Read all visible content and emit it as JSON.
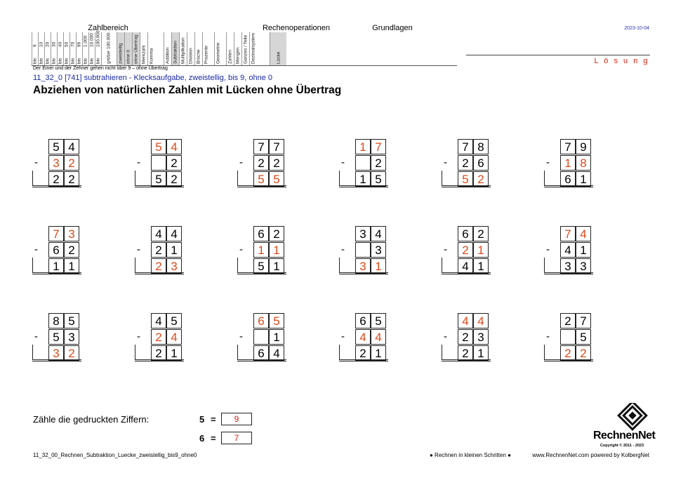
{
  "header": {
    "groups": {
      "zahlbereich": "Zahlbereich",
      "rechenoperationen": "Rechenoperationen",
      "grundlagen": "Grundlagen"
    },
    "columns": [
      {
        "top": "9",
        "label": "bis"
      },
      {
        "top": "10",
        "label": "bis"
      },
      {
        "top": "20",
        "label": "bis"
      },
      {
        "top": "30",
        "label": "bis"
      },
      {
        "top": "40",
        "label": "bis"
      },
      {
        "top": "50",
        "label": "bis"
      },
      {
        "top": "70",
        "label": "bis"
      },
      {
        "top": "99",
        "label": "bis"
      },
      {
        "top": "1.000",
        "label": "bis"
      },
      {
        "top": "10.000",
        "label": "bis"
      },
      {
        "top": "100.000",
        "label": "bis"
      },
      {
        "top": "",
        "label": "größer 100.000"
      },
      {
        "top": "",
        "label": "zweistellig",
        "shaded": true
      },
      {
        "top": "",
        "label": "ohne 0",
        "shaded": true
      },
      {
        "top": "",
        "label": "ohne Übertrag",
        "shaded": true
      },
      {
        "top": "",
        "label": "Merkzahl"
      },
      {
        "top": "",
        "label": "Komma"
      },
      {
        "top": "",
        "label": "Addition"
      },
      {
        "top": "",
        "label": "Subtraktion",
        "shaded": true
      },
      {
        "top": "",
        "label": "Multiplikation"
      },
      {
        "top": "",
        "label": "Division"
      },
      {
        "top": "",
        "label": "Brüche"
      },
      {
        "top": "",
        "label": "Prozente"
      },
      {
        "top": "",
        "label": "Geometrie"
      },
      {
        "top": "",
        "label": "Zahlen"
      },
      {
        "top": "",
        "label": "Mengen"
      },
      {
        "top": "",
        "label": "Ganzes / Teile"
      },
      {
        "top": "",
        "label": "Dezimalsystem"
      },
      {
        "top": "",
        "label": "Lücke",
        "shaded": true
      }
    ],
    "date": "2023-10-04",
    "solution_label": "L ö s u n g"
  },
  "note": "Der Einer und der Zehner gehen nicht über 9 – ohne Übertrag",
  "code_line": "11_32_0   [741]   subtrahieren - Klecksaufgabe, zweistellig, bis 9, ohne 0",
  "title": "Abziehen von natürlichen Zahlen mit Lücken ohne Übertrag",
  "problems": [
    {
      "a": [
        "5",
        "4"
      ],
      "b": [
        "3",
        "2"
      ],
      "r": [
        "2",
        "2"
      ],
      "ar": [
        0,
        0
      ],
      "br": [
        1,
        1
      ],
      "rr": [
        0,
        0
      ]
    },
    {
      "a": [
        "5",
        "4"
      ],
      "b": [
        "",
        "2"
      ],
      "r": [
        "5",
        "2"
      ],
      "ar": [
        1,
        1
      ],
      "br": [
        0,
        0
      ],
      "rr": [
        0,
        0
      ]
    },
    {
      "a": [
        "7",
        "7"
      ],
      "b": [
        "2",
        "2"
      ],
      "r": [
        "5",
        "5"
      ],
      "ar": [
        0,
        0
      ],
      "br": [
        0,
        0
      ],
      "rr": [
        1,
        1
      ]
    },
    {
      "a": [
        "1",
        "7"
      ],
      "b": [
        "",
        "2"
      ],
      "r": [
        "1",
        "5"
      ],
      "ar": [
        1,
        1
      ],
      "br": [
        0,
        0
      ],
      "rr": [
        0,
        0
      ]
    },
    {
      "a": [
        "7",
        "8"
      ],
      "b": [
        "2",
        "6"
      ],
      "r": [
        "5",
        "2"
      ],
      "ar": [
        0,
        0
      ],
      "br": [
        0,
        0
      ],
      "rr": [
        1,
        1
      ]
    },
    {
      "a": [
        "7",
        "9"
      ],
      "b": [
        "1",
        "8"
      ],
      "r": [
        "6",
        "1"
      ],
      "ar": [
        0,
        0
      ],
      "br": [
        1,
        1
      ],
      "rr": [
        0,
        0
      ]
    },
    {
      "a": [
        "7",
        "3"
      ],
      "b": [
        "6",
        "2"
      ],
      "r": [
        "1",
        "1"
      ],
      "ar": [
        1,
        1
      ],
      "br": [
        0,
        0
      ],
      "rr": [
        0,
        0
      ]
    },
    {
      "a": [
        "4",
        "4"
      ],
      "b": [
        "2",
        "1"
      ],
      "r": [
        "2",
        "3"
      ],
      "ar": [
        0,
        0
      ],
      "br": [
        0,
        0
      ],
      "rr": [
        1,
        1
      ]
    },
    {
      "a": [
        "6",
        "2"
      ],
      "b": [
        "1",
        "1"
      ],
      "r": [
        "5",
        "1"
      ],
      "ar": [
        0,
        0
      ],
      "br": [
        1,
        1
      ],
      "rr": [
        0,
        0
      ]
    },
    {
      "a": [
        "3",
        "4"
      ],
      "b": [
        "",
        "3"
      ],
      "r": [
        "3",
        "1"
      ],
      "ar": [
        0,
        0
      ],
      "br": [
        0,
        0
      ],
      "rr": [
        1,
        1
      ]
    },
    {
      "a": [
        "6",
        "2"
      ],
      "b": [
        "2",
        "1"
      ],
      "r": [
        "4",
        "1"
      ],
      "ar": [
        0,
        0
      ],
      "br": [
        1,
        1
      ],
      "rr": [
        0,
        0
      ]
    },
    {
      "a": [
        "7",
        "4"
      ],
      "b": [
        "4",
        "1"
      ],
      "r": [
        "3",
        "3"
      ],
      "ar": [
        1,
        1
      ],
      "br": [
        0,
        0
      ],
      "rr": [
        0,
        0
      ]
    },
    {
      "a": [
        "8",
        "5"
      ],
      "b": [
        "5",
        "3"
      ],
      "r": [
        "3",
        "2"
      ],
      "ar": [
        0,
        0
      ],
      "br": [
        0,
        0
      ],
      "rr": [
        1,
        1
      ]
    },
    {
      "a": [
        "4",
        "5"
      ],
      "b": [
        "2",
        "4"
      ],
      "r": [
        "2",
        "1"
      ],
      "ar": [
        0,
        0
      ],
      "br": [
        1,
        1
      ],
      "rr": [
        0,
        0
      ]
    },
    {
      "a": [
        "6",
        "5"
      ],
      "b": [
        "",
        "1"
      ],
      "r": [
        "6",
        "4"
      ],
      "ar": [
        1,
        1
      ],
      "br": [
        0,
        0
      ],
      "rr": [
        0,
        0
      ]
    },
    {
      "a": [
        "6",
        "5"
      ],
      "b": [
        "4",
        "4"
      ],
      "r": [
        "2",
        "1"
      ],
      "ar": [
        0,
        0
      ],
      "br": [
        1,
        1
      ],
      "rr": [
        0,
        0
      ]
    },
    {
      "a": [
        "4",
        "4"
      ],
      "b": [
        "2",
        "3"
      ],
      "r": [
        "2",
        "1"
      ],
      "ar": [
        1,
        1
      ],
      "br": [
        0,
        0
      ],
      "rr": [
        0,
        0
      ]
    },
    {
      "a": [
        "2",
        "7"
      ],
      "b": [
        "",
        "5"
      ],
      "r": [
        "2",
        "2"
      ],
      "ar": [
        0,
        0
      ],
      "br": [
        0,
        0
      ],
      "rr": [
        1,
        1
      ]
    }
  ],
  "minus_sign": "-",
  "counting": {
    "label": "Zähle die gedruckten Ziffern:",
    "rows": [
      {
        "digit": "5",
        "eq": "=",
        "answer": "9"
      },
      {
        "digit": "6",
        "eq": "=",
        "answer": "7"
      }
    ]
  },
  "footer": {
    "file": "11_32_00_Rechnen_Subtraktion_Luecke_zweistellig_bis9_ohne0",
    "slogan": "● Rechnen in kleinen Schritten ●",
    "web": "www.RechnenNet.com powered by KolbergNet"
  },
  "logo": {
    "name": "RechnenNet",
    "copyright": "Copyright © 2011 - 2023"
  }
}
